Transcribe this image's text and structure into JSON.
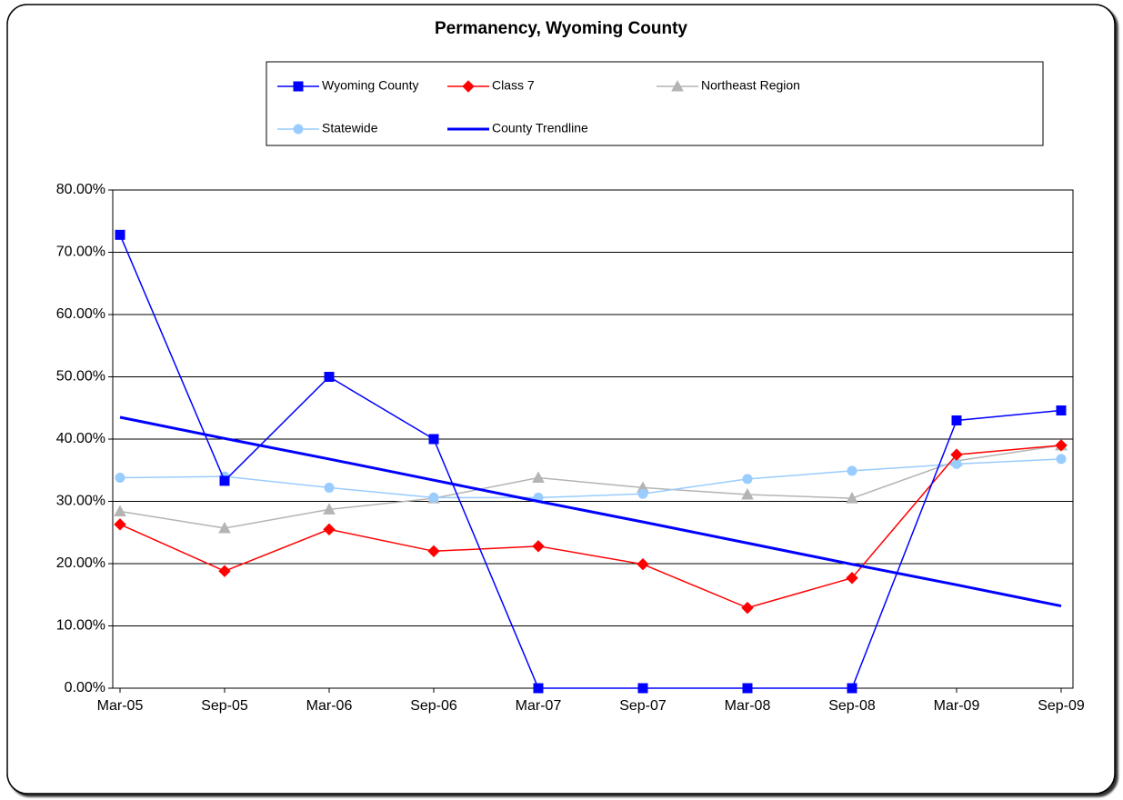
{
  "chart_data": {
    "type": "line",
    "title": "Permanency, Wyoming County",
    "categories": [
      "Mar-05",
      "Sep-05",
      "Mar-06",
      "Sep-06",
      "Mar-07",
      "Sep-07",
      "Mar-08",
      "Sep-08",
      "Mar-09",
      "Sep-09"
    ],
    "series": [
      {
        "name": "Wyoming County",
        "color": "#0000ff",
        "marker": "square",
        "width": 1.5,
        "values": [
          72.8,
          33.3,
          50.0,
          40.0,
          0,
          0,
          0,
          0,
          43.0,
          44.6
        ]
      },
      {
        "name": "Class 7",
        "color": "#ff0000",
        "marker": "diamond",
        "width": 1.5,
        "values": [
          26.3,
          18.8,
          25.5,
          22.0,
          22.8,
          19.9,
          12.9,
          17.7,
          37.5,
          39.0
        ]
      },
      {
        "name": "Northeast Region",
        "color": "#b4b4b4",
        "marker": "triangle",
        "width": 1.5,
        "values": [
          28.4,
          25.7,
          28.7,
          30.5,
          33.8,
          32.2,
          31.1,
          30.5,
          36.5,
          39.0
        ]
      },
      {
        "name": "Statewide",
        "color": "#99ccff",
        "marker": "circle",
        "width": 1.5,
        "values": [
          33.8,
          34.0,
          32.2,
          30.6,
          30.6,
          31.2,
          33.6,
          34.9,
          36.0,
          36.8
        ]
      },
      {
        "name": "County Trendline",
        "color": "#0000ff",
        "marker": "none",
        "width": 3,
        "values": [
          43.5,
          40.1,
          36.8,
          33.4,
          30.0,
          26.7,
          23.3,
          19.9,
          16.6,
          13.2
        ]
      }
    ],
    "ylim": [
      0,
      80
    ],
    "yticks": [
      {
        "value": 0,
        "label": "0.00%"
      },
      {
        "value": 10,
        "label": "10.00%"
      },
      {
        "value": 20,
        "label": "20.00%"
      },
      {
        "value": 30,
        "label": "30.00%"
      },
      {
        "value": 40,
        "label": "40.00%"
      },
      {
        "value": 50,
        "label": "50.00%"
      },
      {
        "value": 60,
        "label": "60.00%"
      },
      {
        "value": 70,
        "label": "70.00%"
      },
      {
        "value": 80,
        "label": "80.00%"
      }
    ],
    "grid": true
  }
}
